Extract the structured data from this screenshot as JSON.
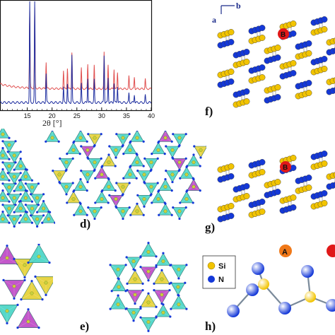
{
  "chart_data": {
    "type": "line",
    "xlabel": "2θ [°]",
    "x_ticks": [
      "15",
      "20",
      "25",
      "30",
      "35",
      "40"
    ],
    "xlim": [
      9.5,
      40
    ],
    "grid": false,
    "series": [
      {
        "color": "#e05050",
        "peaks": [
          [
            15.5,
            0.92
          ],
          [
            16.5,
            0.96
          ],
          [
            18.8,
            0.32
          ],
          [
            22.3,
            0.22
          ],
          [
            23.1,
            0.25
          ],
          [
            24.0,
            0.44
          ],
          [
            25.9,
            0.25
          ],
          [
            27.2,
            0.3
          ],
          [
            28.5,
            0.28
          ],
          [
            30.5,
            0.44
          ],
          [
            31.3,
            0.28
          ],
          [
            32.5,
            0.24
          ],
          [
            33.2,
            0.2
          ],
          [
            35.5,
            0.15
          ],
          [
            36.6,
            0.14
          ],
          [
            38.8,
            0.12
          ]
        ]
      },
      {
        "color": "#1f2fa0",
        "peaks": [
          [
            15.5,
            0.99
          ],
          [
            16.5,
            1.0
          ],
          [
            18.8,
            0.28
          ],
          [
            22.3,
            0.15
          ],
          [
            23.1,
            0.18
          ],
          [
            24.0,
            0.46
          ],
          [
            25.9,
            0.18
          ],
          [
            27.2,
            0.24
          ],
          [
            28.5,
            0.22
          ],
          [
            30.5,
            0.46
          ],
          [
            31.3,
            0.24
          ],
          [
            32.5,
            0.19
          ],
          [
            33.2,
            0.16
          ],
          [
            35.5,
            0.09
          ],
          [
            36.6,
            0.08
          ],
          [
            38.8,
            0.07
          ]
        ]
      }
    ]
  },
  "figure": {
    "panel_labels": [
      "d)",
      "e)",
      "f)",
      "g)",
      "h)"
    ],
    "axis_a": "a",
    "axis_b": "b",
    "site_b_label": "B",
    "site_a_label": "A",
    "legend_si": "Si",
    "legend_n": "N"
  },
  "colors": {
    "tetra_cyan": "#4fd6c8",
    "tetra_magenta": "#c04fc8",
    "tetra_yellow": "#e6d23a",
    "si": "#f2c400",
    "n": "#1438d8",
    "site_b": "#e01818",
    "site_a": "#f07818"
  }
}
